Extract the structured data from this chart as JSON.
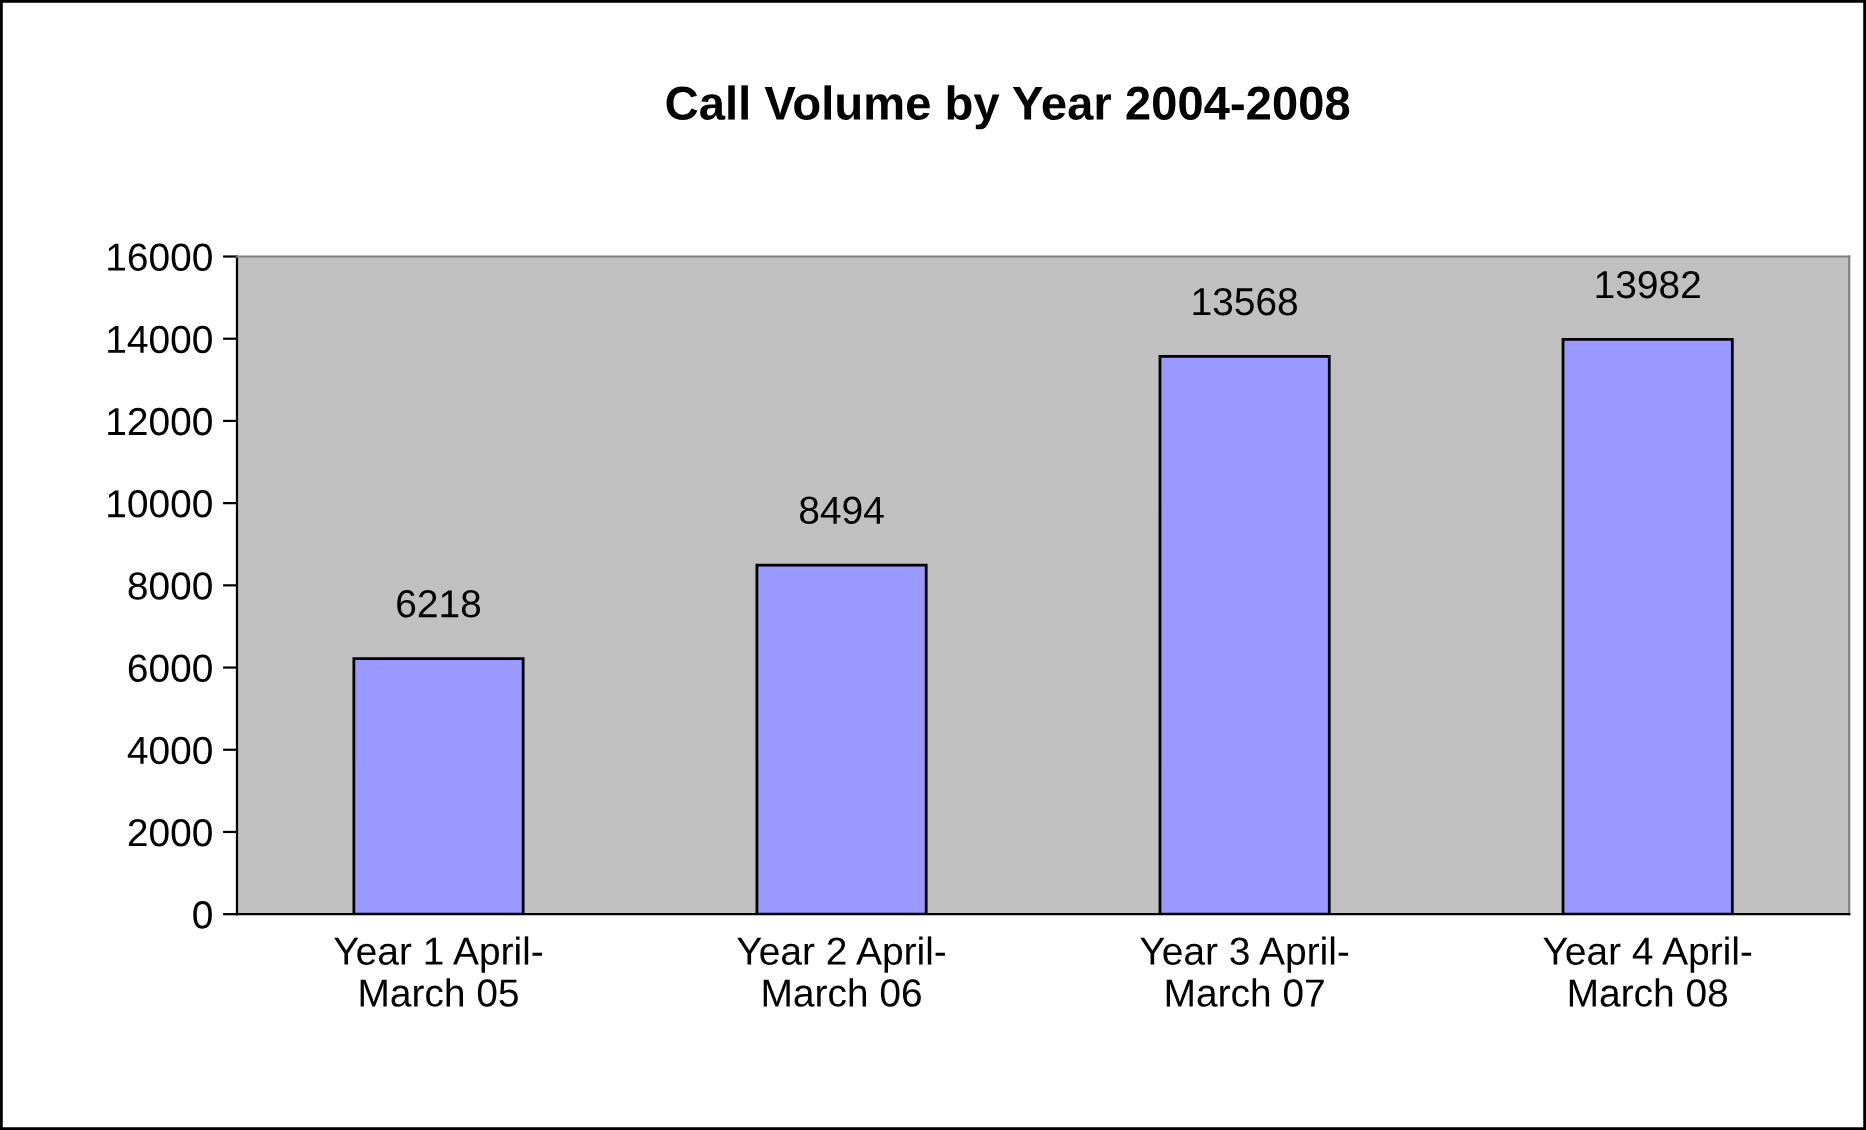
{
  "chart_data": {
    "type": "bar",
    "title": "Call Volume by Year 2004-2008",
    "categories": [
      "Year 1 April-\nMarch 05",
      "Year 2 April-\nMarch 06",
      "Year 3 April-\nMarch 07",
      "Year 4 April-\nMarch 08"
    ],
    "values": [
      6218,
      8494,
      13568,
      13982
    ],
    "color": "#9999ff",
    "ylim": [
      0,
      16000
    ],
    "yticks": [
      0,
      2000,
      4000,
      6000,
      8000,
      10000,
      12000,
      14000,
      16000
    ],
    "data_labels": true
  }
}
